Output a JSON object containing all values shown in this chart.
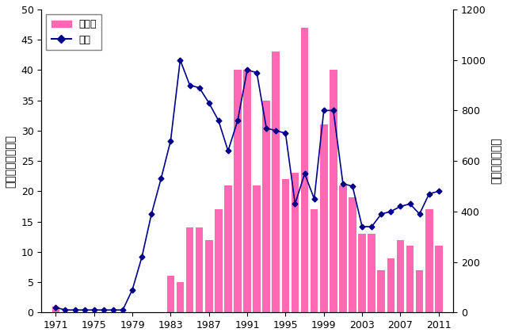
{
  "years": [
    1971,
    1972,
    1973,
    1974,
    1975,
    1976,
    1977,
    1978,
    1979,
    1980,
    1981,
    1982,
    1983,
    1984,
    1985,
    1986,
    1987,
    1988,
    1989,
    1990,
    1991,
    1992,
    1993,
    1994,
    1995,
    1996,
    1997,
    1998,
    1999,
    2000,
    2001,
    2002,
    2003,
    2004,
    2005,
    2006,
    2007,
    2008,
    2009,
    2010,
    2011
  ],
  "oita": [
    1,
    0,
    0,
    0,
    0,
    0,
    0,
    0,
    0,
    0,
    0,
    0,
    6,
    5,
    14,
    14,
    12,
    17,
    21,
    40,
    40,
    21,
    35,
    43,
    22,
    23,
    47,
    17,
    31,
    40,
    21,
    19,
    13,
    13,
    7,
    9,
    12,
    11,
    7,
    17,
    11
  ],
  "zenkoku": [
    20,
    10,
    10,
    10,
    10,
    10,
    10,
    10,
    90,
    220,
    390,
    530,
    680,
    1000,
    900,
    890,
    830,
    760,
    640,
    760,
    960,
    950,
    730,
    720,
    710,
    430,
    550,
    450,
    800,
    800,
    510,
    500,
    340,
    340,
    390,
    400,
    420,
    430,
    390,
    470,
    480
  ],
  "bar_color": "#FF69B4",
  "line_color": "#00008B",
  "left_ylim": [
    0,
    50
  ],
  "right_ylim": [
    0,
    1200
  ],
  "left_yticks": [
    0,
    5,
    10,
    15,
    20,
    25,
    30,
    35,
    40,
    45,
    50
  ],
  "right_yticks": [
    0,
    200,
    400,
    600,
    800,
    1000,
    1200
  ],
  "xticks": [
    1971,
    1975,
    1979,
    1983,
    1987,
    1991,
    1995,
    1999,
    2003,
    2007,
    2011
  ],
  "ylabel_left": "患者数（大分県）",
  "ylabel_right": "患者数（全国）",
  "legend_oita": "大分県",
  "legend_zenkoku": "全国",
  "xlim_left": 1969.5,
  "xlim_right": 2012.5
}
